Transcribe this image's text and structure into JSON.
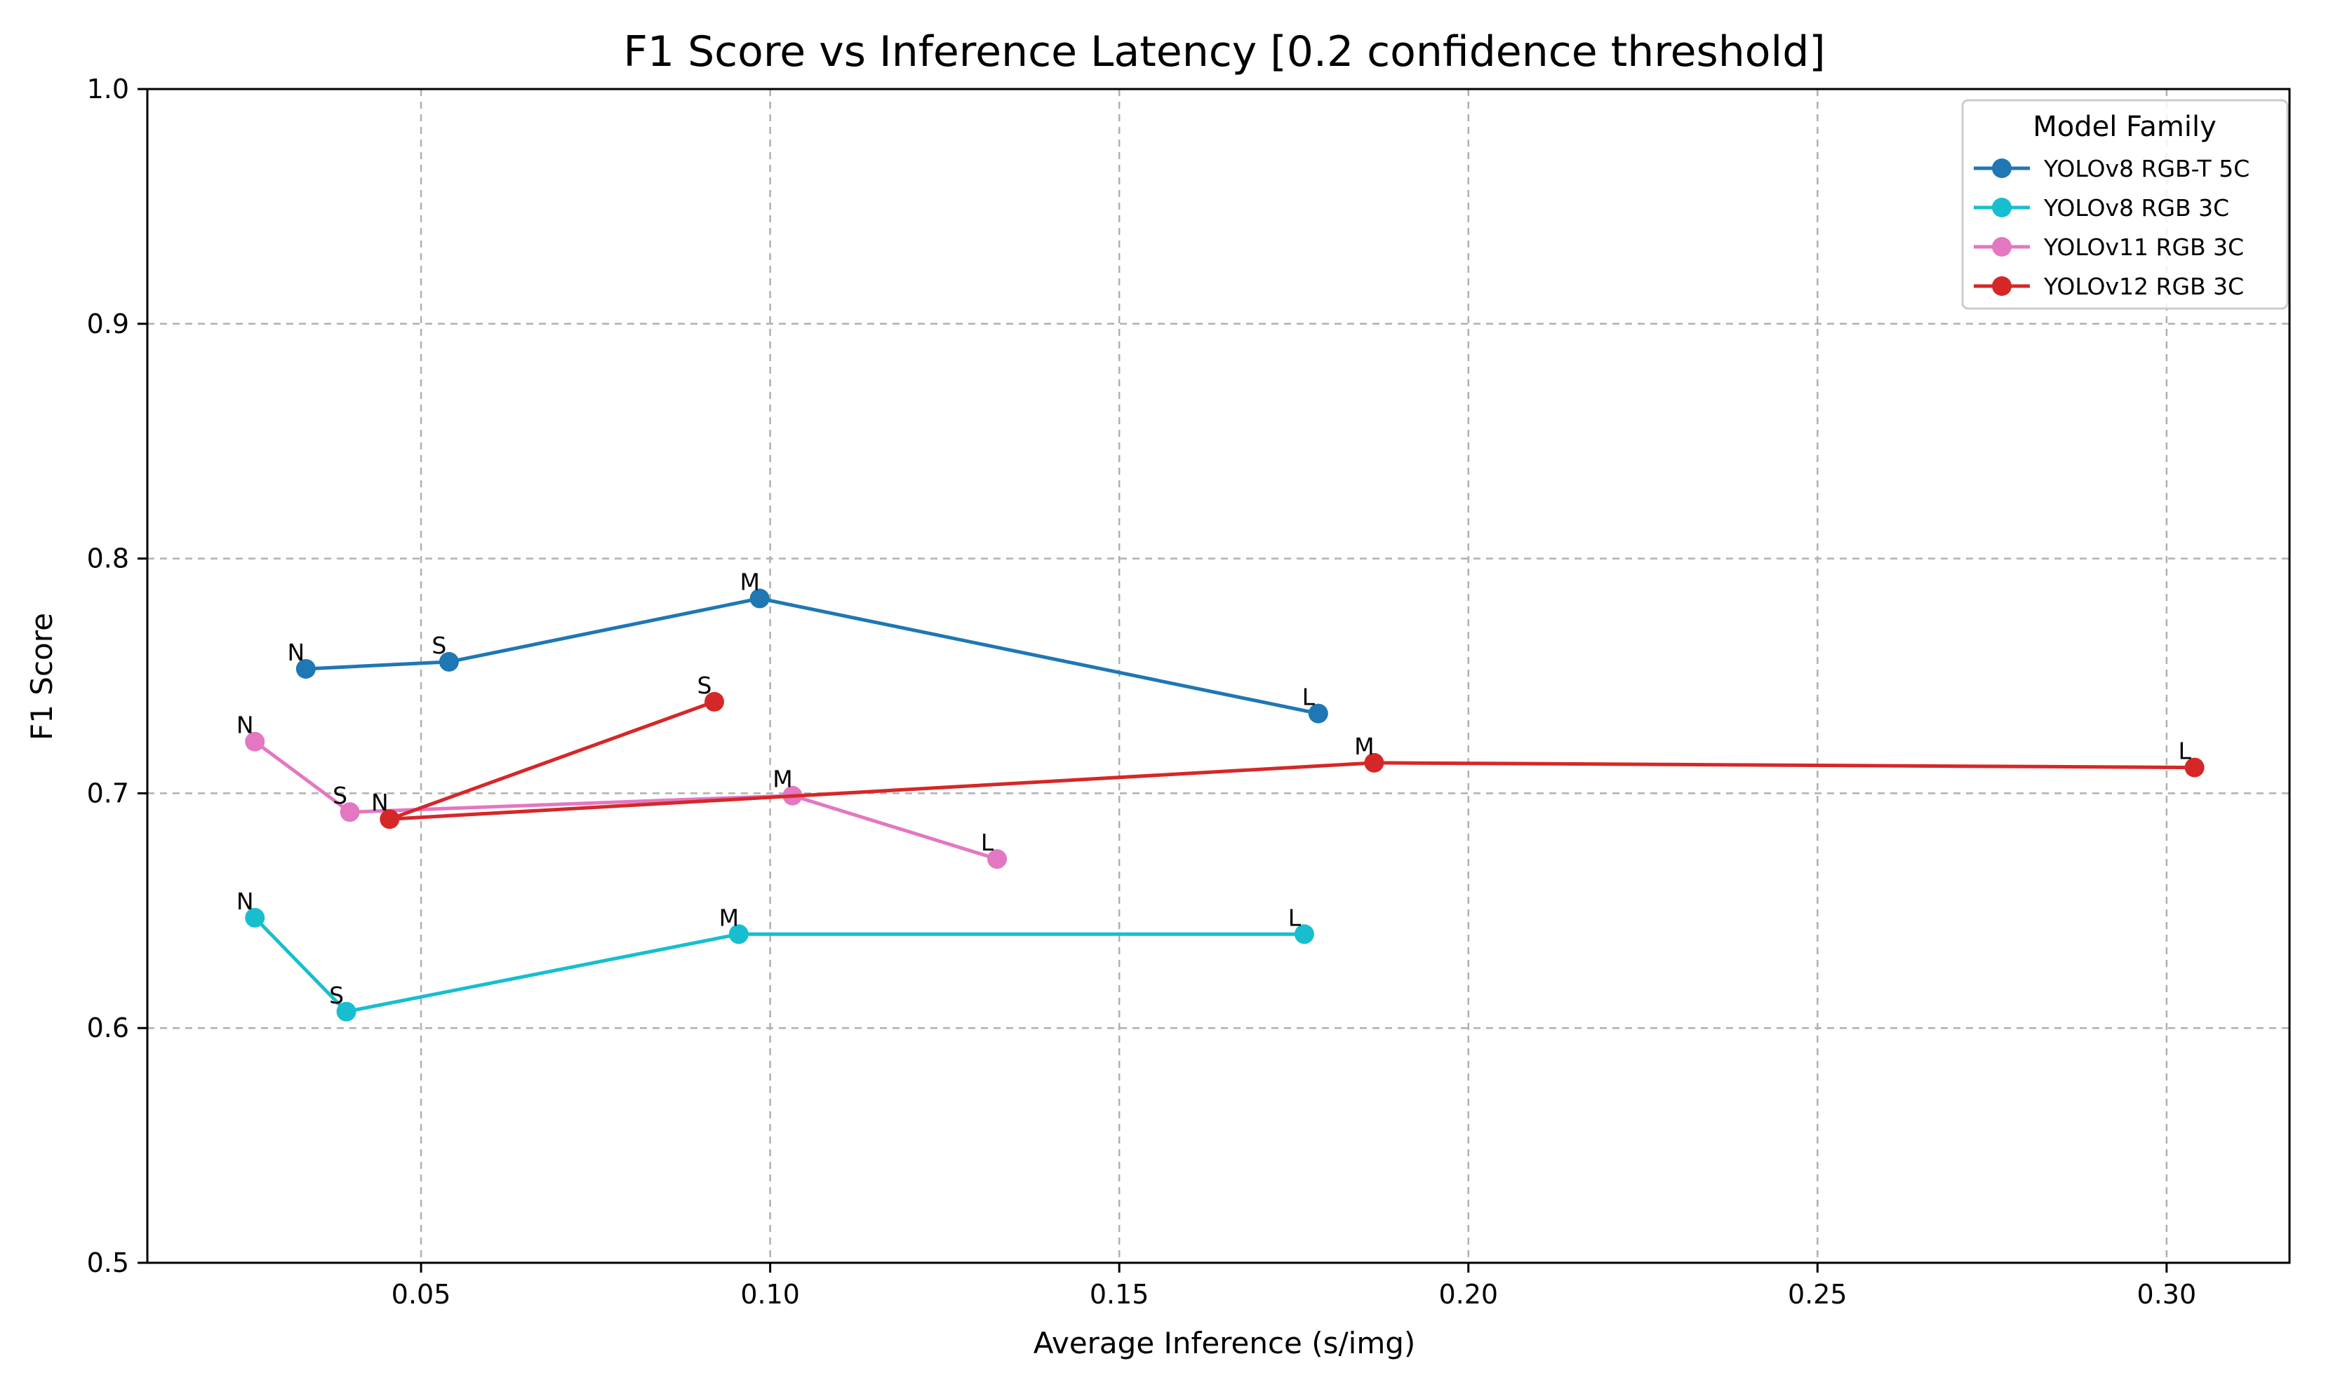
{
  "chart_data": {
    "type": "line",
    "title": "F1 Score vs Inference Latency [0.2 confidence threshold]",
    "xlabel": "Average Inference (s/img)",
    "ylabel": "F1 Score",
    "xlim": [
      0.0108,
      0.3176
    ],
    "ylim": [
      0.5,
      1.0
    ],
    "xticks": [
      "0.05",
      "0.10",
      "0.15",
      "0.20",
      "0.25",
      "0.30"
    ],
    "xtick_values": [
      0.05,
      0.1,
      0.15,
      0.2,
      0.25,
      0.3
    ],
    "yticks": [
      "0.5",
      "0.6",
      "0.7",
      "0.8",
      "0.9",
      "1.0"
    ],
    "ytick_values": [
      0.5,
      0.6,
      0.7,
      0.8,
      0.9,
      1.0
    ],
    "grid": true,
    "legend": {
      "title": "Model Family",
      "position": "top-right"
    },
    "series": [
      {
        "name": "YOLOv8 RGB-T 5C",
        "color": "#1f77b4",
        "points": [
          {
            "label": "N",
            "x": 0.0335,
            "y": 0.753
          },
          {
            "label": "S",
            "x": 0.054,
            "y": 0.756
          },
          {
            "label": "M",
            "x": 0.0985,
            "y": 0.783
          },
          {
            "label": "L",
            "x": 0.1785,
            "y": 0.734
          }
        ]
      },
      {
        "name": "YOLOv8 RGB 3C",
        "color": "#17becf",
        "points": [
          {
            "label": "N",
            "x": 0.0262,
            "y": 0.647
          },
          {
            "label": "S",
            "x": 0.0393,
            "y": 0.607
          },
          {
            "label": "M",
            "x": 0.0955,
            "y": 0.64
          },
          {
            "label": "L",
            "x": 0.1765,
            "y": 0.64
          }
        ]
      },
      {
        "name": "YOLOv11 RGB 3C",
        "color": "#e377c2",
        "points": [
          {
            "label": "N",
            "x": 0.0262,
            "y": 0.722
          },
          {
            "label": "S",
            "x": 0.0398,
            "y": 0.692
          },
          {
            "label": "M",
            "x": 0.1032,
            "y": 0.699
          },
          {
            "label": "L",
            "x": 0.1325,
            "y": 0.672
          }
        ]
      },
      {
        "name": "YOLOv12 RGB 3C",
        "color": "#d62728",
        "points": [
          {
            "label": "S",
            "x": 0.092,
            "y": 0.739
          },
          {
            "label": "N",
            "x": 0.0455,
            "y": 0.689
          },
          {
            "label": "M",
            "x": 0.1865,
            "y": 0.713
          },
          {
            "label": "L",
            "x": 0.304,
            "y": 0.711
          }
        ]
      }
    ]
  }
}
